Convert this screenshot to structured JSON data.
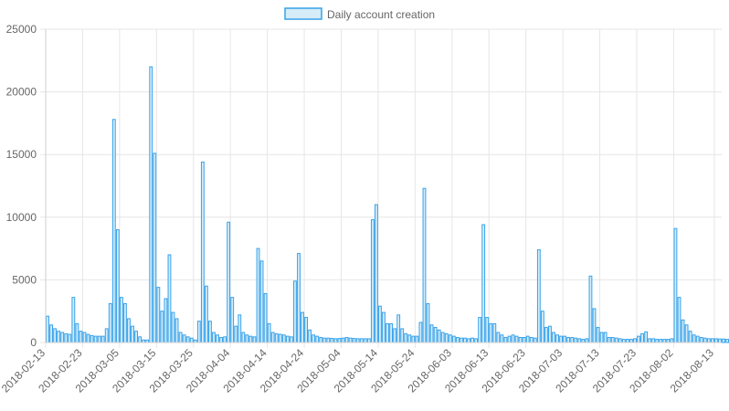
{
  "chart_data": {
    "type": "bar",
    "legend": {
      "position": "top-center",
      "label": "Daily account creation"
    },
    "colors": {
      "bar_fill": "#d6ecf7",
      "bar_stroke": "#36a2eb",
      "grid": "#e6e6e6",
      "text": "#666666"
    },
    "grid": true,
    "ylim": [
      0,
      25000
    ],
    "yticks": [
      0,
      5000,
      10000,
      15000,
      20000,
      25000
    ],
    "xlim": [
      "2018-02-13",
      "2018-08-15"
    ],
    "xticks": [
      "2018-02-13",
      "2018-02-23",
      "2018-03-05",
      "2018-03-15",
      "2018-03-25",
      "2018-04-04",
      "2018-04-14",
      "2018-04-24",
      "2018-05-04",
      "2018-05-14",
      "2018-05-24",
      "2018-06-03",
      "2018-06-13",
      "2018-06-23",
      "2018-07-03",
      "2018-07-13",
      "2018-07-23",
      "2018-08-02",
      "2018-08-13"
    ],
    "series": [
      {
        "name": "Daily account creation",
        "values": [
          2100,
          1400,
          1100,
          900,
          800,
          700,
          650,
          3600,
          1500,
          900,
          800,
          650,
          550,
          500,
          500,
          500,
          1100,
          3100,
          17800,
          9000,
          3600,
          3100,
          1900,
          1300,
          900,
          450,
          200,
          200,
          22000,
          15100,
          4400,
          2500,
          3500,
          7000,
          2400,
          1900,
          800,
          600,
          450,
          350,
          200,
          1700,
          14400,
          4500,
          1700,
          800,
          600,
          400,
          450,
          9600,
          3600,
          1300,
          2200,
          800,
          600,
          500,
          450,
          7500,
          6500,
          3900,
          1500,
          800,
          700,
          650,
          600,
          500,
          450,
          4900,
          7100,
          2400,
          2000,
          1000,
          600,
          500,
          400,
          350,
          350,
          330,
          300,
          320,
          350,
          400,
          350,
          320,
          300,
          300,
          300,
          300,
          9800,
          11000,
          2900,
          2400,
          1500,
          1500,
          1100,
          2200,
          1100,
          700,
          600,
          500,
          500,
          1600,
          12300,
          3100,
          1400,
          1200,
          1000,
          800,
          700,
          600,
          500,
          400,
          350,
          350,
          300,
          350,
          300,
          2000,
          9400,
          2000,
          1500,
          1500,
          800,
          600,
          400,
          500,
          600,
          500,
          400,
          400,
          500,
          400,
          350,
          7400,
          2500,
          1200,
          1300,
          800,
          600,
          500,
          500,
          400,
          400,
          350,
          300,
          250,
          300,
          5300,
          2700,
          1200,
          800,
          800,
          400,
          400,
          350,
          300,
          250,
          250,
          250,
          300,
          500,
          700,
          850,
          300,
          300,
          250,
          250,
          250,
          250,
          300,
          9100,
          3600,
          1800,
          1400,
          900,
          600,
          500,
          400,
          350,
          300,
          300,
          300,
          280,
          280,
          250,
          250,
          220,
          200,
          200
        ]
      }
    ]
  }
}
